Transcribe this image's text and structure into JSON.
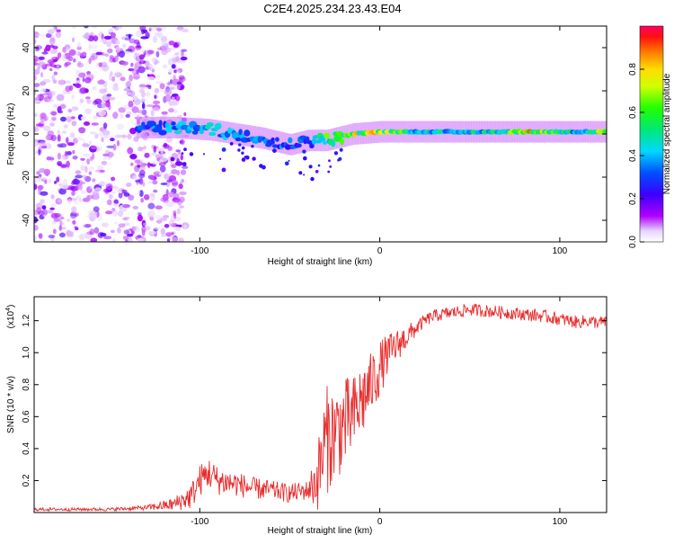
{
  "title": "C2E4.2025.234.23.43.E04",
  "colors": {
    "snr_line": "#e82c2c",
    "band_low": "#7a00ff",
    "band_high": "#ff0000"
  },
  "chart_data": [
    {
      "type": "heatmap",
      "name": "spectrogram",
      "xlabel": "Height of straight line (km)",
      "ylabel": "Frequency (Hz)",
      "xlim": [
        -192,
        126
      ],
      "ylim": [
        -50,
        50
      ],
      "xticks": [
        -100,
        0,
        100
      ],
      "xtick_labels": [
        "-100",
        "0",
        "100"
      ],
      "yticks": [
        -40,
        -20,
        0,
        20,
        40
      ],
      "ytick_labels": [
        "-40",
        "-20",
        "0",
        "20",
        "40"
      ],
      "colorbar": {
        "label": "Normalized spectral amplitude",
        "range": [
          0,
          1
        ],
        "ticks": [
          0.0,
          0.2,
          0.4,
          0.6,
          0.8
        ],
        "tick_labels": [
          "0.0",
          "0.2",
          "0.4",
          "0.6",
          "0.8"
        ]
      },
      "noise_region": {
        "x_from": -192,
        "x_to": -120,
        "freq_from": -50,
        "freq_to": 50
      },
      "signal_band": [
        {
          "x": -135,
          "freq": 3,
          "amp": 0.35
        },
        {
          "x": -115,
          "freq": 3,
          "amp": 0.45
        },
        {
          "x": -95,
          "freq": 2,
          "amp": 0.5
        },
        {
          "x": -80,
          "freq": 0,
          "amp": 0.45
        },
        {
          "x": -65,
          "freq": -2,
          "amp": 0.42
        },
        {
          "x": -50,
          "freq": -5,
          "amp": 0.38
        },
        {
          "x": -40,
          "freq": -3,
          "amp": 0.35
        },
        {
          "x": -30,
          "freq": -3,
          "amp": 0.7
        },
        {
          "x": -15,
          "freq": 0,
          "amp": 0.8
        },
        {
          "x": 0,
          "freq": 1,
          "amp": 0.85
        },
        {
          "x": 20,
          "freq": 1,
          "amp": 0.55
        },
        {
          "x": 60,
          "freq": 1,
          "amp": 0.55
        },
        {
          "x": 85,
          "freq": 1,
          "amp": 0.9
        },
        {
          "x": 110,
          "freq": 1,
          "amp": 0.5
        },
        {
          "x": 126,
          "freq": 1,
          "amp": 0.85
        }
      ]
    },
    {
      "type": "line",
      "name": "snr",
      "xlabel": "Height of straight line (km)",
      "ylabel": "SNR (10 * v/v)",
      "scale_label": "(x10",
      "scale_exponent": "4",
      "scale_close": ")",
      "xlim": [
        -192,
        126
      ],
      "ylim": [
        0,
        1.35
      ],
      "xticks": [
        -100,
        0,
        100
      ],
      "xtick_labels": [
        "-100",
        "0",
        "100"
      ],
      "yticks": [
        0.2,
        0.4,
        0.6,
        0.8,
        1.0,
        1.2
      ],
      "ytick_labels": [
        "0.2",
        "0.4",
        "0.6",
        "0.8",
        "1.0",
        "1.2"
      ],
      "x": [
        -192,
        -150,
        -130,
        -115,
        -105,
        -100,
        -95,
        -90,
        -80,
        -70,
        -60,
        -50,
        -40,
        -35,
        -30,
        -25,
        -20,
        -15,
        -10,
        -5,
        0,
        5,
        10,
        15,
        20,
        25,
        30,
        40,
        50,
        60,
        70,
        80,
        90,
        100,
        105,
        110,
        115,
        120,
        126
      ],
      "values": [
        0.02,
        0.02,
        0.03,
        0.05,
        0.1,
        0.2,
        0.25,
        0.2,
        0.18,
        0.15,
        0.14,
        0.12,
        0.14,
        0.2,
        0.45,
        0.5,
        0.55,
        0.6,
        0.7,
        0.8,
        0.9,
        1.0,
        1.05,
        1.1,
        1.15,
        1.2,
        1.23,
        1.25,
        1.27,
        1.26,
        1.25,
        1.24,
        1.23,
        1.21,
        1.2,
        1.19,
        1.2,
        1.19,
        1.19
      ],
      "noise_amp": [
        0.01,
        0.01,
        0.015,
        0.04,
        0.08,
        0.1,
        0.1,
        0.09,
        0.08,
        0.07,
        0.06,
        0.06,
        0.06,
        0.2,
        0.35,
        0.3,
        0.3,
        0.25,
        0.25,
        0.2,
        0.18,
        0.12,
        0.1,
        0.08,
        0.05,
        0.04,
        0.04,
        0.04,
        0.04,
        0.04,
        0.04,
        0.04,
        0.04,
        0.04,
        0.04,
        0.04,
        0.04,
        0.04,
        0.04
      ]
    }
  ]
}
